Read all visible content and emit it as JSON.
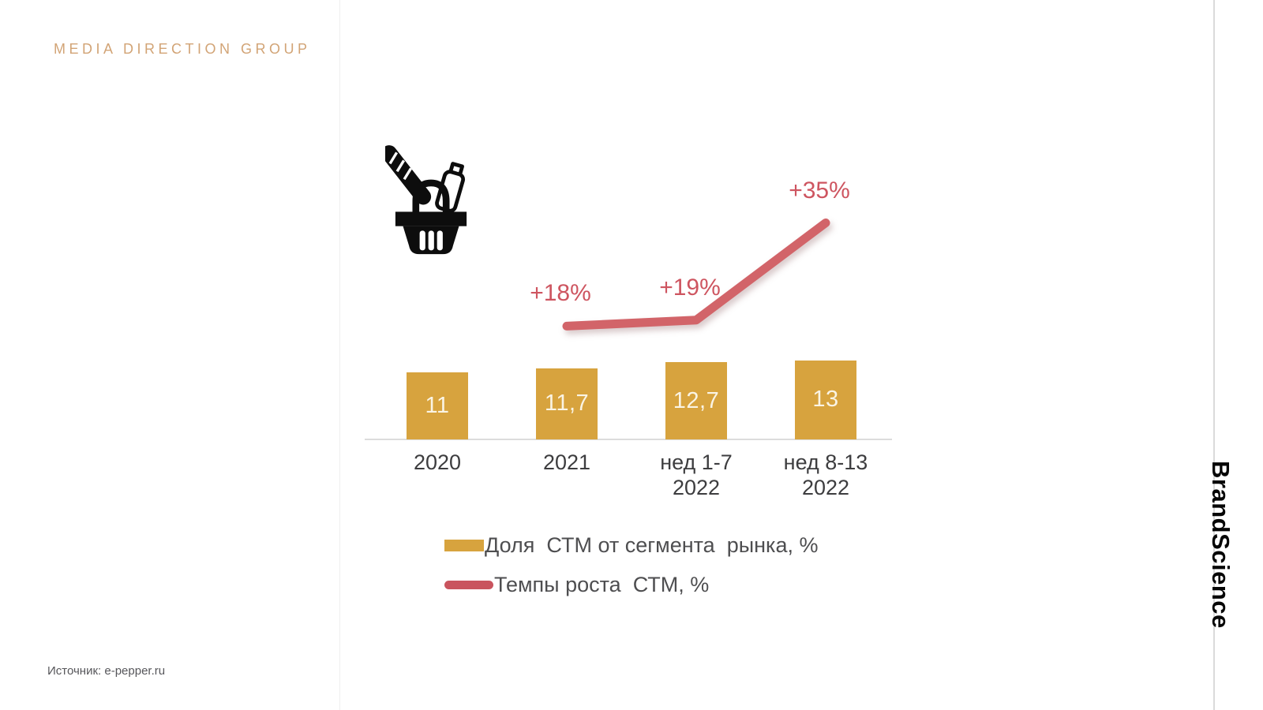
{
  "slide": {
    "logo": "MEDIA DIRECTION GROUP",
    "brand": "BrandScience",
    "source": "Источник: e-pepper.ru"
  },
  "colors": {
    "gold": "#D7A33E",
    "line_red": "#D26469",
    "pct_label_red": "#CE5560",
    "bar_value_text": "#FAF4E4",
    "axis_gray": "#DCDCDC",
    "logo_gold": "#D2A476",
    "text_dark": "#3D3D3F",
    "text_gray": "#56565A"
  },
  "icons": {
    "basket": "grocery-basket-icon"
  },
  "chart_data": {
    "type": "bar",
    "categories": [
      [
        "2020"
      ],
      [
        "2021"
      ],
      [
        "нед 1-7",
        "2022"
      ],
      [
        "нед 8-13",
        "2022"
      ]
    ],
    "series": [
      {
        "name": "Доля  СТМ от сегмента  рынка, %",
        "type": "bar",
        "values": [
          11,
          11.7,
          12.7,
          13
        ],
        "labels": [
          "11",
          "11,7",
          "12,7",
          "13"
        ],
        "color": "#D7A33E"
      },
      {
        "name": "Темпы роста  СТМ, %",
        "type": "line",
        "values": [
          null,
          18,
          19,
          35
        ],
        "labels": [
          null,
          "+18%",
          "+19%",
          "+35%"
        ],
        "color": "#D26469"
      }
    ],
    "ylim": [
      0,
      13
    ],
    "grid": false,
    "legend_position": "bottom-left",
    "value_label_decimal_separator": ","
  },
  "legend": {
    "items": [
      {
        "label": "Доля  СТМ от сегмента  рынка, %",
        "swatch": "bar"
      },
      {
        "label": "Темпы роста  СТМ, %",
        "swatch": "line"
      }
    ]
  }
}
